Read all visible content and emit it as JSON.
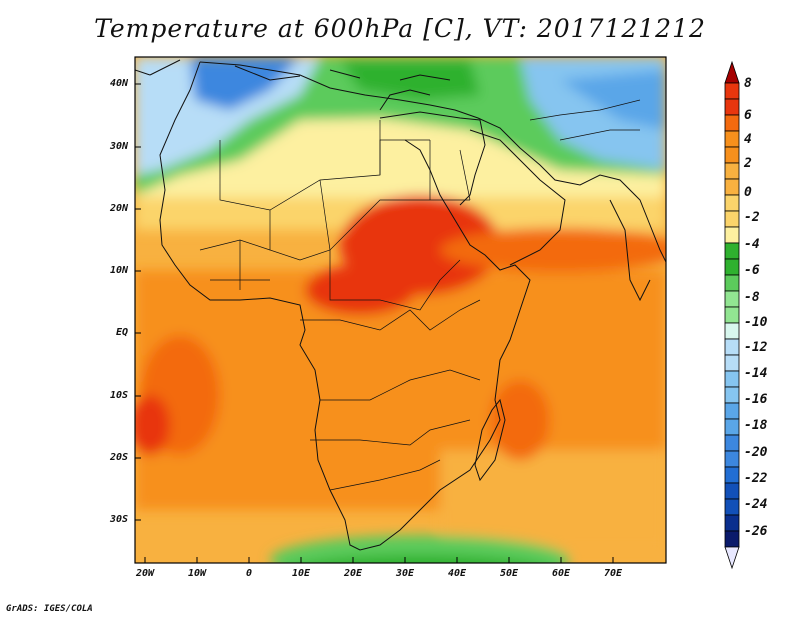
{
  "title": "Temperature at 600hPa [C], VT: 2017121212",
  "credit": "GrADS: IGES/COLA",
  "y_axis_labels": [
    "40N",
    "30N",
    "20N",
    "10N",
    "EQ",
    "10S",
    "20S",
    "30S"
  ],
  "x_axis_labels": [
    "20W",
    "10W",
    "0",
    "10E",
    "20E",
    "30E",
    "40E",
    "50E",
    "60E",
    "70E"
  ],
  "colorbar": {
    "labels": [
      "8",
      "6",
      "4",
      "2",
      "0",
      "-2",
      "-4",
      "-6",
      "-8",
      "-10",
      "-12",
      "-14",
      "-16",
      "-18",
      "-20",
      "-22",
      "-24",
      "-26"
    ],
    "colors": [
      "#a50000",
      "#e8360e",
      "#f36a0f",
      "#f7901c",
      "#f8b140",
      "#fbd46b",
      "#fdf0a0",
      "#2fb12f",
      "#5ccb5c",
      "#92e592",
      "#d8f7ee",
      "#b7ddf7",
      "#86c5f0",
      "#5aa6e8",
      "#3c87df",
      "#226ed3",
      "#1250b8",
      "#0a2f8e",
      "#0a1a6b"
    ]
  },
  "map": {
    "region": "Africa and surroundings",
    "lon_range": [
      "20W",
      "80E"
    ],
    "lat_range": [
      "35S",
      "45N"
    ],
    "color_legend_field": "temperature_celsius"
  }
}
